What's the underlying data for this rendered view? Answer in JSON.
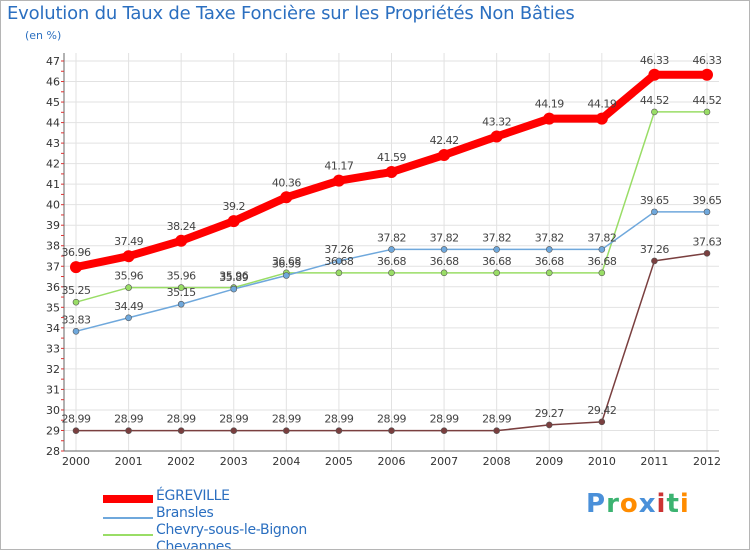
{
  "chart_data": {
    "type": "line",
    "title": "Evolution du Taux de Taxe Foncière sur les Propriétés Non Bâties",
    "subtitle": "(en %)",
    "xlabel": "",
    "ylabel": "(en %)",
    "ylim": [
      28,
      47
    ],
    "yticks": [
      "28",
      "29",
      "30",
      "31",
      "32",
      "33",
      "34",
      "35",
      "36",
      "37",
      "38",
      "39",
      "40",
      "41",
      "42",
      "43",
      "44",
      "45",
      "46",
      "47"
    ],
    "categories": [
      "2000",
      "2001",
      "2002",
      "2003",
      "2004",
      "2005",
      "2006",
      "2007",
      "2008",
      "2009",
      "2010",
      "2011",
      "2012"
    ],
    "grid": true,
    "legend_position": "bottom-left",
    "series": [
      {
        "name": "ÉGREVILLE",
        "color": "#ff0000",
        "values": [
          36.96,
          37.49,
          38.24,
          39.2,
          40.36,
          41.17,
          41.59,
          42.42,
          43.32,
          44.19,
          44.19,
          46.33,
          46.33
        ],
        "labels": [
          "36.96",
          "37.49",
          "38.24",
          "39.2",
          "40.36",
          "41.17",
          "41.59",
          "42.42",
          "43.32",
          "44.19",
          "44.19",
          "46.33",
          "46.33"
        ]
      },
      {
        "name": "Bransles",
        "color": "#6fa8dc",
        "values": [
          33.83,
          34.49,
          35.15,
          35.89,
          36.55,
          37.26,
          37.82,
          37.82,
          37.82,
          37.82,
          37.82,
          39.65,
          39.65
        ],
        "labels": [
          "33.83",
          "34.49",
          "35.15",
          "35.89",
          "36.55",
          "37.26",
          "37.82",
          "37.82",
          "37.82",
          "37.82",
          "37.82",
          "39.65",
          "39.65"
        ]
      },
      {
        "name": "Chevry-sous-le-Bignon",
        "color": "#99dd66",
        "values": [
          35.25,
          35.96,
          35.96,
          35.96,
          36.68,
          36.68,
          36.68,
          36.68,
          36.68,
          36.68,
          36.68,
          44.52,
          44.52
        ],
        "labels": [
          "35.25",
          "35.96",
          "35.96",
          "35.96",
          "36.68",
          "36.68",
          "36.68",
          "36.68",
          "36.68",
          "36.68",
          "36.68",
          "44.52",
          "44.52"
        ]
      },
      {
        "name": "Chevannes",
        "color": "#7a3f3f",
        "values": [
          28.99,
          28.99,
          28.99,
          28.99,
          28.99,
          28.99,
          28.99,
          28.99,
          28.99,
          29.27,
          29.42,
          37.26,
          37.63
        ],
        "labels": [
          "28.99",
          "28.99",
          "28.99",
          "28.99",
          "28.99",
          "28.99",
          "28.99",
          "28.99",
          "28.99",
          "29.27",
          "29.42",
          "37.26",
          "37.63"
        ]
      }
    ]
  },
  "logo": {
    "letters": [
      "P",
      "r",
      "o",
      "x",
      "i",
      "t",
      "i"
    ],
    "colors": [
      "#4a90d9",
      "#3cb371",
      "#ff8c00",
      "#4a90d9",
      "#cc3333",
      "#3cb371",
      "#ff8c00"
    ]
  }
}
